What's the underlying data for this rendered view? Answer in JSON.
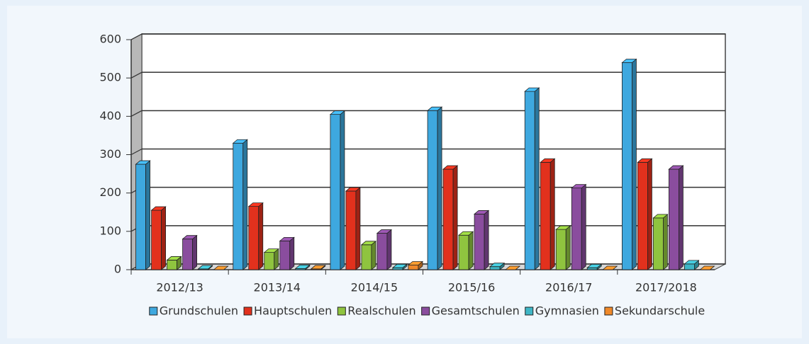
{
  "chart_data": {
    "type": "bar3d",
    "categories": [
      "2012/13",
      "2013/14",
      "2014/15",
      "2015/16",
      "2016/17",
      "2017/2018"
    ],
    "series": [
      {
        "name": "Grundschulen",
        "color": "#3ea8df",
        "values": [
          275,
          330,
          405,
          415,
          465,
          540
        ]
      },
      {
        "name": "Hauptschulen",
        "color": "#e2311d",
        "values": [
          155,
          165,
          205,
          262,
          280,
          280
        ]
      },
      {
        "name": "Realschulen",
        "color": "#8fc43f",
        "values": [
          25,
          45,
          65,
          90,
          105,
          135
        ]
      },
      {
        "name": "Gesamtschulen",
        "color": "#8a4d9e",
        "values": [
          80,
          75,
          95,
          145,
          213,
          262
        ]
      },
      {
        "name": "Gymnasien",
        "color": "#3fb6c6",
        "values": [
          2,
          3,
          5,
          8,
          5,
          15
        ]
      },
      {
        "name": "Sekundarschule",
        "color": "#f0892a",
        "values": [
          0,
          2,
          12,
          0,
          0,
          0
        ]
      }
    ],
    "ylim": [
      0,
      600
    ],
    "yticks": [
      0,
      100,
      200,
      300,
      400,
      500,
      600
    ],
    "grid": true,
    "legend": "bottom"
  }
}
